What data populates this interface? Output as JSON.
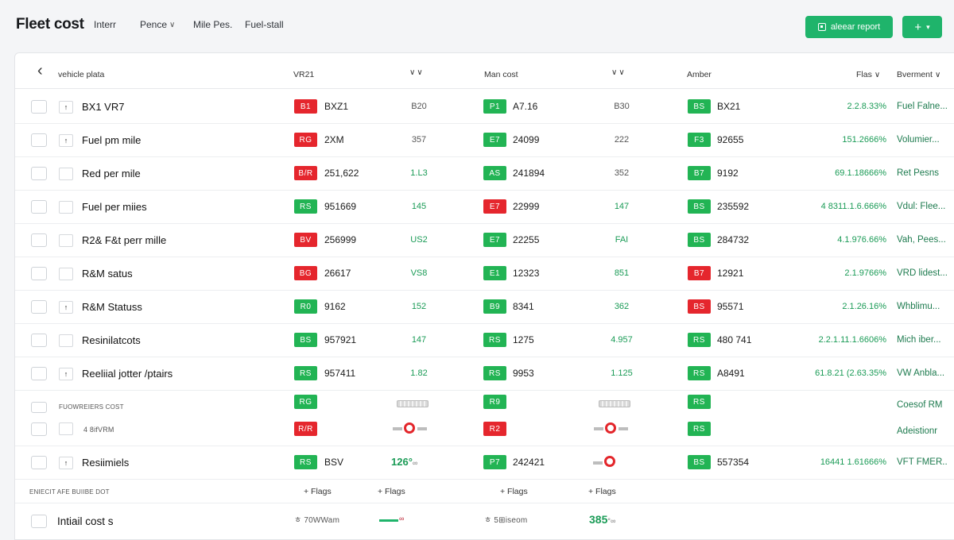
{
  "app": {
    "title": "Fleet cost"
  },
  "nav": [
    {
      "label": "Interr",
      "chevron": false
    },
    {
      "label": "Pence",
      "chevron": true
    },
    {
      "label": "Mile Pes.",
      "chevron": false
    },
    {
      "label": "Fuel-stall",
      "chevron": false
    }
  ],
  "actions": {
    "report_label": "aleear report",
    "add_label": "+"
  },
  "columns": {
    "vehicle": "vehicle plata",
    "col2": "VR21",
    "col3": "Man cost",
    "col4": "Amber",
    "col5": "Flas",
    "col6": "Bverment"
  },
  "colors": {
    "accent": "#1fb46b",
    "red": "#e5262d",
    "green": "#22b454"
  },
  "rows": [
    {
      "name": "BX1 VR7",
      "sub": "↑",
      "b1": {
        "t": "B1",
        "c": "red"
      },
      "v1": "BXZ1",
      "m1": "B20",
      "m1c": "grey",
      "b2": {
        "t": "P1",
        "c": "green"
      },
      "v2": "A7.16",
      "m2": "B30",
      "m2c": "grey",
      "b3": {
        "t": "BS",
        "c": "green"
      },
      "v3": "BX21",
      "pct": "2.2.8.33%",
      "note": "Fuel Falne..."
    },
    {
      "name": "Fuel pm mile",
      "sub": "↑",
      "b1": {
        "t": "RG",
        "c": "red"
      },
      "v1": "2XM",
      "m1": "357",
      "m1c": "grey",
      "b2": {
        "t": "E7",
        "c": "green"
      },
      "v2": "24099",
      "m2": "222",
      "m2c": "grey",
      "b3": {
        "t": "F3",
        "c": "green"
      },
      "v3": "92655",
      "pct": "151.2666%",
      "note": "Volumier..."
    },
    {
      "name": "Red per mile",
      "sub": "",
      "b1": {
        "t": "B/R",
        "c": "red"
      },
      "v1": "251,622",
      "m1": "1.L3",
      "m1c": "green",
      "b2": {
        "t": "AS",
        "c": "green"
      },
      "v2": "241894",
      "m2": "352",
      "m2c": "grey",
      "b3": {
        "t": "B7",
        "c": "green"
      },
      "v3": "9192",
      "pct": "69.1.18666%",
      "note": "Ret Pesns"
    },
    {
      "name": "Fuel per miies",
      "sub": "",
      "b1": {
        "t": "RS",
        "c": "green"
      },
      "v1": "951669",
      "m1": "145",
      "m1c": "green",
      "b2": {
        "t": "E7",
        "c": "red"
      },
      "v2": "22999",
      "m2": "147",
      "m2c": "green",
      "b3": {
        "t": "BS",
        "c": "green"
      },
      "v3": "235592",
      "pct": "4 8311.1.6.666%",
      "note": "Vdul: Flee..."
    },
    {
      "name": "R2& F&t perr mille",
      "sub": "",
      "b1": {
        "t": "BV",
        "c": "red"
      },
      "v1": "256999",
      "m1": "US2",
      "m1c": "green",
      "b2": {
        "t": "E7",
        "c": "green"
      },
      "v2": "22255",
      "m2": "FAI",
      "m2c": "green",
      "b3": {
        "t": "BS",
        "c": "green"
      },
      "v3": "284732",
      "pct": "4.1.976.66%",
      "note": "Vah, Pees..."
    },
    {
      "name": "R&M satus",
      "sub": "",
      "b1": {
        "t": "BG",
        "c": "red"
      },
      "v1": "26617",
      "m1": "VS8",
      "m1c": "green",
      "b2": {
        "t": "E1",
        "c": "green"
      },
      "v2": "12323",
      "m2": "851",
      "m2c": "green",
      "b3": {
        "t": "B7",
        "c": "red"
      },
      "v3": "12921",
      "pct": "2.1.9766%",
      "note": "VRD lidest..."
    },
    {
      "name": "R&M Statuss",
      "sub": "↑",
      "b1": {
        "t": "R0",
        "c": "green"
      },
      "v1": "9162",
      "m1": "152",
      "m1c": "green",
      "b2": {
        "t": "B9",
        "c": "green"
      },
      "v2": "8341",
      "m2": "362",
      "m2c": "green",
      "b3": {
        "t": "BS",
        "c": "red"
      },
      "v3": "95571",
      "pct": "2.1.26.16%",
      "note": "Whblimu..."
    },
    {
      "name": "Resinilatcots",
      "sub": "",
      "b1": {
        "t": "BS",
        "c": "green"
      },
      "v1": "957921",
      "m1": "147",
      "m1c": "green",
      "b2": {
        "t": "RS",
        "c": "green"
      },
      "v2": "1275",
      "m2": "4.957",
      "m2c": "green",
      "b3": {
        "t": "RS",
        "c": "green"
      },
      "v3": "480 741",
      "pct": "2.2.1.11.1.6606%",
      "note": "Mich iber..."
    },
    {
      "name": "Reeliial jotter /ptairs",
      "sub": "↑",
      "b1": {
        "t": "RS",
        "c": "green"
      },
      "v1": "957411",
      "m1": "1.82",
      "m1c": "green",
      "b2": {
        "t": "RS",
        "c": "green"
      },
      "v2": "9953",
      "m2": "1.125",
      "m2c": "green",
      "b3": {
        "t": "RS",
        "c": "green"
      },
      "v3": "A8491",
      "pct": "61.8.21 (2.63.35%",
      "note": "VW Anbla..."
    }
  ],
  "group": {
    "label": "FUOWREIERS COST",
    "sub_label": "4 8ifVRM",
    "b_top": [
      "RG",
      "R9",
      "RS"
    ],
    "b_bot": [
      "R/R",
      "R2",
      "RS"
    ],
    "note_top": "Coesof RM",
    "note_bot": "Adeistionr"
  },
  "row10": {
    "name": "Resiimiels",
    "sub": "↑",
    "b1": "RS",
    "v1": "BSV",
    "m1": "126°",
    "m1_suffix": "∞",
    "b2": "P7",
    "v2": "242421",
    "b3": "BS",
    "v3": "557354",
    "pct": "16441 1.61666%",
    "note": "VFT FMER.."
  },
  "footer": {
    "label": "ENIECIT AFE BUIIBE DOT",
    "flags": [
      "+ Flags",
      "+ Flags",
      "+ Flags",
      "+ Flags"
    ],
    "total_label": "Intiail cost s",
    "t1": "ㅎ 70WWam",
    "t2": "∞",
    "t3": "ㅎ 5⊞iseom",
    "t4": "385",
    "t4_suffix": "°∞"
  }
}
